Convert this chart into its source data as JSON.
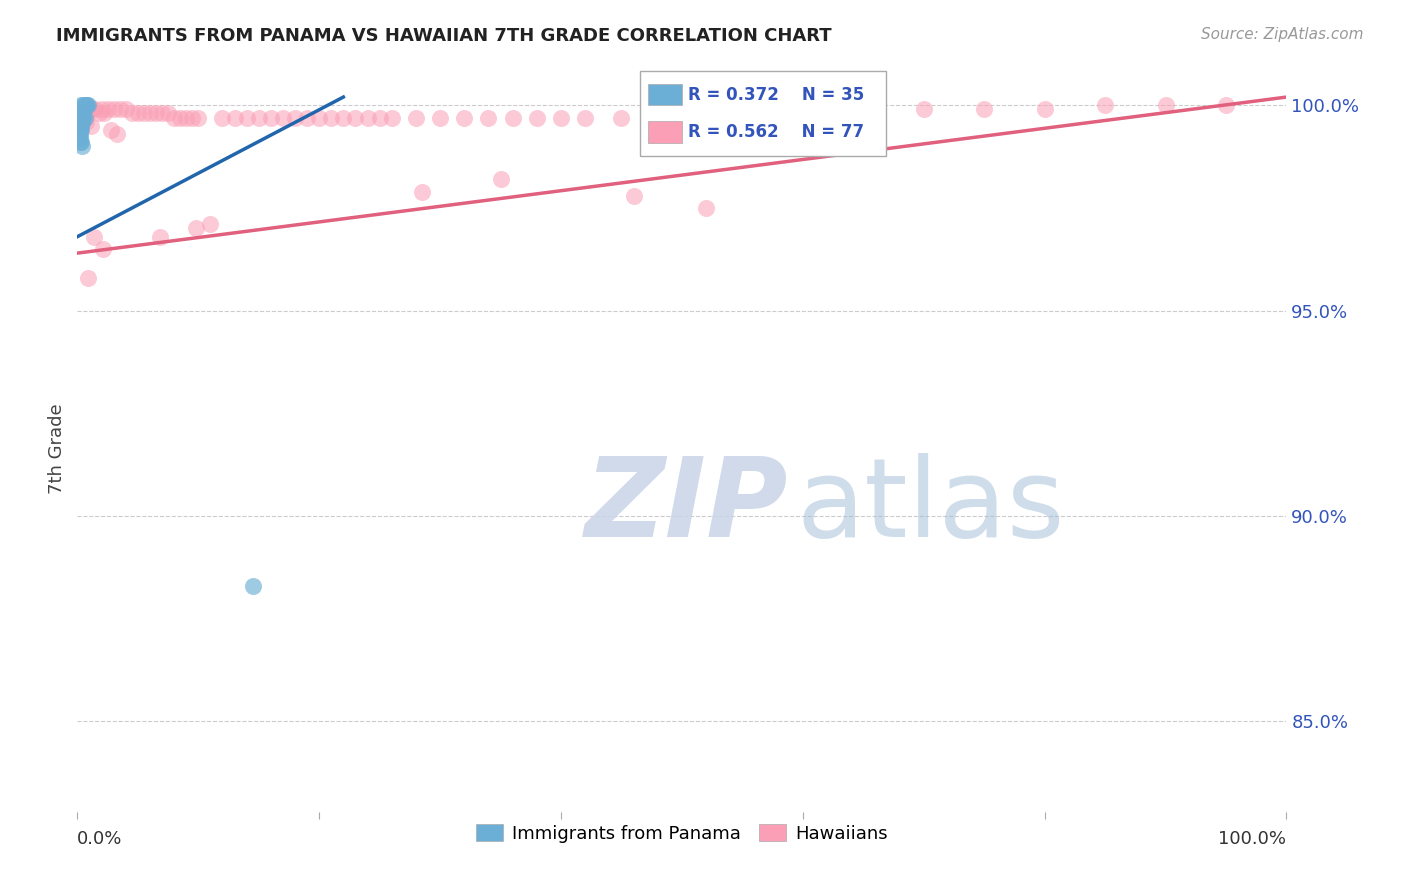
{
  "title": "IMMIGRANTS FROM PANAMA VS HAWAIIAN 7TH GRADE CORRELATION CHART",
  "source": "Source: ZipAtlas.com",
  "ylabel": "7th Grade",
  "legend1_label": "Immigrants from Panama",
  "legend2_label": "Hawaiians",
  "blue_color": "#6baed6",
  "pink_color": "#fa9fb5",
  "blue_line_color": "#2166ac",
  "pink_line_color": "#e0607e",
  "blue_r": "R = 0.372",
  "blue_n": "N = 35",
  "pink_r": "R = 0.562",
  "pink_n": "N = 77",
  "xlim": [
    0.0,
    100.0
  ],
  "ylim": [
    0.828,
    1.005
  ],
  "yticks": [
    0.85,
    0.9,
    0.95,
    1.0
  ],
  "ytick_labels": [
    "85.0%",
    "90.0%",
    "95.0%",
    "100.0%"
  ],
  "blue_line_x": [
    0.0,
    22.0
  ],
  "blue_line_y": [
    0.968,
    1.002
  ],
  "pink_line_x": [
    0.0,
    100.0
  ],
  "pink_line_y": [
    0.964,
    1.002
  ],
  "blue_points_x": [
    0.3,
    0.5,
    0.6,
    0.7,
    0.4,
    0.8,
    0.9,
    0.5,
    0.4,
    0.3,
    0.2,
    0.3,
    0.4,
    0.5,
    0.6,
    0.2,
    0.3,
    0.4,
    0.2,
    0.3,
    0.4,
    0.3,
    0.2,
    0.2,
    0.3,
    0.2,
    0.2,
    0.2,
    0.3,
    0.4,
    0.5,
    0.4,
    0.3,
    0.3,
    14.5
  ],
  "blue_points_y": [
    1.0,
    1.0,
    1.0,
    1.0,
    0.999,
    1.0,
    1.0,
    0.999,
    0.999,
    0.998,
    0.998,
    0.998,
    0.998,
    0.997,
    0.997,
    0.997,
    0.997,
    0.996,
    0.996,
    0.996,
    0.996,
    0.995,
    0.995,
    0.994,
    0.994,
    0.993,
    0.992,
    0.991,
    0.991,
    0.99,
    0.998,
    0.997,
    0.998,
    0.997,
    0.883
  ],
  "pink_points_x": [
    0.2,
    0.4,
    1.0,
    1.2,
    0.5,
    1.5,
    2.0,
    0.8,
    0.6,
    0.4,
    0.3,
    2.5,
    1.8,
    3.0,
    2.2,
    3.5,
    4.0,
    5.0,
    5.5,
    6.0,
    6.5,
    7.0,
    7.5,
    8.0,
    8.5,
    9.0,
    9.5,
    10.0,
    12.0,
    13.0,
    14.0,
    15.0,
    16.0,
    17.0,
    18.0,
    19.0,
    20.0,
    21.0,
    22.0,
    23.0,
    24.0,
    25.0,
    26.0,
    28.0,
    30.0,
    32.0,
    34.0,
    36.0,
    38.0,
    40.0,
    42.0,
    45.0,
    50.0,
    55.0,
    60.0,
    65.0,
    70.0,
    75.0,
    80.0,
    85.0,
    90.0,
    95.0,
    4.5,
    0.7,
    1.1,
    2.8,
    3.3,
    6.8,
    11.0,
    46.0,
    52.0,
    28.5,
    0.9,
    1.4,
    2.1,
    9.8,
    35.0
  ],
  "pink_points_y": [
    0.998,
    0.997,
    0.999,
    0.999,
    0.998,
    0.999,
    0.999,
    0.998,
    0.997,
    0.996,
    0.995,
    0.999,
    0.998,
    0.999,
    0.998,
    0.999,
    0.999,
    0.998,
    0.998,
    0.998,
    0.998,
    0.998,
    0.998,
    0.997,
    0.997,
    0.997,
    0.997,
    0.997,
    0.997,
    0.997,
    0.997,
    0.997,
    0.997,
    0.997,
    0.997,
    0.997,
    0.997,
    0.997,
    0.997,
    0.997,
    0.997,
    0.997,
    0.997,
    0.997,
    0.997,
    0.997,
    0.997,
    0.997,
    0.997,
    0.997,
    0.997,
    0.997,
    0.998,
    0.998,
    0.998,
    0.998,
    0.999,
    0.999,
    0.999,
    1.0,
    1.0,
    1.0,
    0.998,
    0.996,
    0.995,
    0.994,
    0.993,
    0.968,
    0.971,
    0.978,
    0.975,
    0.979,
    0.958,
    0.968,
    0.965,
    0.97,
    0.982
  ]
}
